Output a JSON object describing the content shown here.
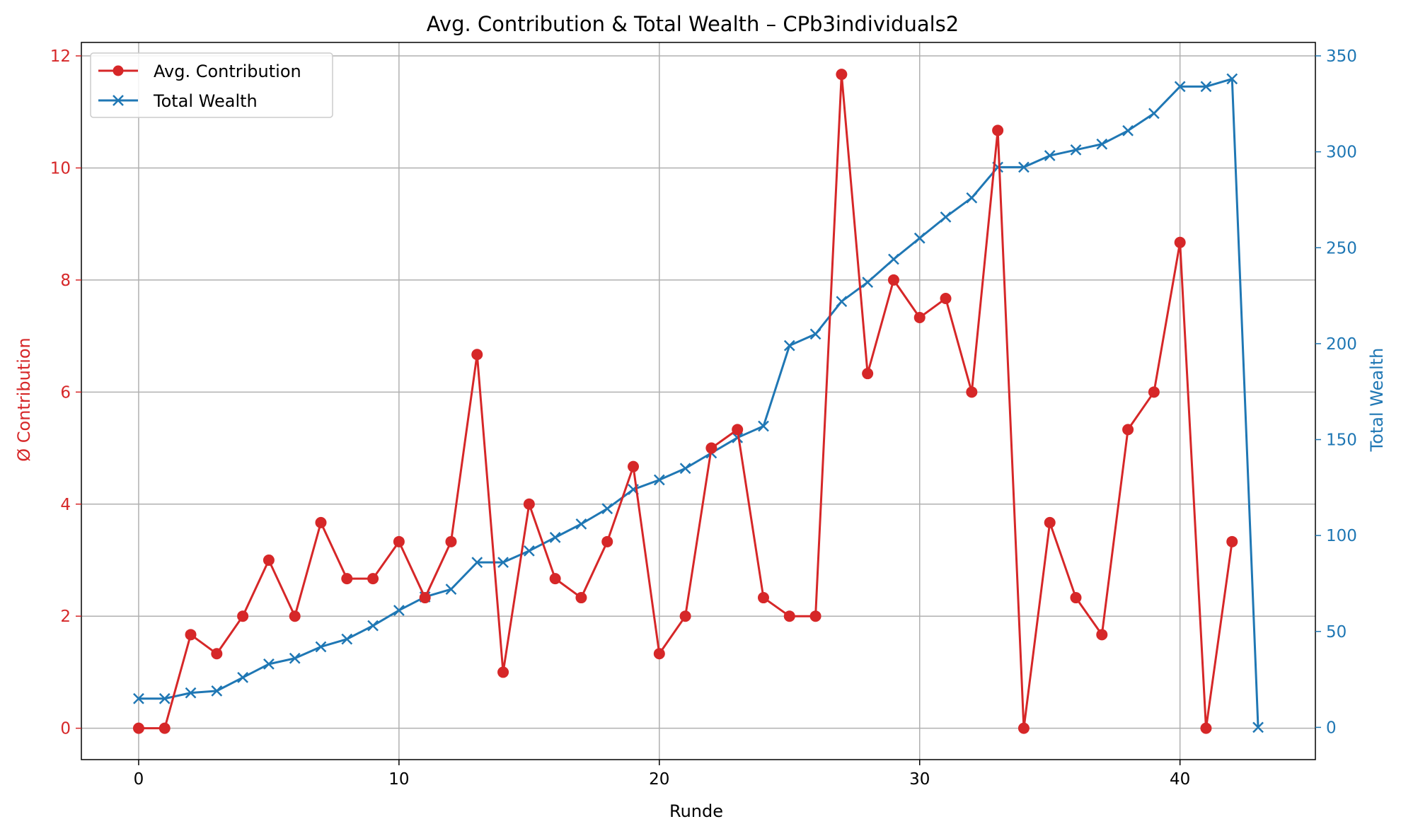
{
  "chart_data": {
    "type": "line",
    "title": "Avg. Contribution & Total Wealth – CPb3individuals2",
    "xlabel": "Runde",
    "ylabel_left": "Ø Contribution",
    "ylabel_right": "Total Wealth",
    "xlim": [
      -2.2,
      45.2
    ],
    "ylim_left": [
      -0.56,
      12.24
    ],
    "ylim_right": [
      -16.8,
      357
    ],
    "x_ticks": [
      0,
      10,
      20,
      30,
      40
    ],
    "y_ticks_left": [
      0,
      2,
      4,
      6,
      8,
      10,
      12
    ],
    "y_ticks_right": [
      0,
      50,
      100,
      150,
      200,
      250,
      300,
      350
    ],
    "grid": true,
    "legend_position": "upper-left",
    "colors": {
      "contribution": "#d62728",
      "wealth": "#1f77b4",
      "grid": "#b0b0b0",
      "text": "#000000"
    },
    "series": [
      {
        "name": "Avg. Contribution",
        "axis": "left",
        "marker": "circle",
        "color": "#d62728",
        "x": [
          0,
          1,
          2,
          3,
          4,
          5,
          6,
          7,
          8,
          9,
          10,
          11,
          12,
          13,
          14,
          15,
          16,
          17,
          18,
          19,
          20,
          21,
          22,
          23,
          24,
          25,
          26,
          27,
          28,
          29,
          30,
          31,
          32,
          33,
          34,
          35,
          36,
          37,
          38,
          39,
          40,
          41,
          42
        ],
        "values": [
          0,
          0,
          1.67,
          1.33,
          2,
          3,
          2,
          3.67,
          2.67,
          2.67,
          3.33,
          2.33,
          3.33,
          6.67,
          1,
          4,
          2.67,
          2.33,
          3.33,
          4.67,
          1.33,
          2,
          5,
          5.33,
          2.33,
          2,
          2,
          11.67,
          6.33,
          8,
          7.33,
          7.67,
          6,
          10.67,
          0,
          3.67,
          2.33,
          1.67,
          5.33,
          6,
          8.67,
          0,
          3.33
        ]
      },
      {
        "name": "Total Wealth",
        "axis": "right",
        "marker": "x",
        "color": "#1f77b4",
        "x": [
          0,
          1,
          2,
          3,
          4,
          5,
          6,
          7,
          8,
          9,
          10,
          11,
          12,
          13,
          14,
          15,
          16,
          17,
          18,
          19,
          20,
          21,
          22,
          23,
          24,
          25,
          26,
          27,
          28,
          29,
          30,
          31,
          32,
          33,
          34,
          35,
          36,
          37,
          38,
          39,
          40,
          41,
          42,
          43
        ],
        "values": [
          15,
          15,
          18,
          19,
          26,
          33,
          36,
          42,
          46,
          53,
          61,
          68,
          72,
          86,
          86,
          92,
          99,
          106,
          114,
          124,
          129,
          135,
          143,
          151,
          157,
          199,
          205,
          222,
          232,
          244,
          255,
          266,
          276,
          292,
          292,
          298,
          301,
          304,
          311,
          320,
          334,
          334,
          338,
          0
        ]
      }
    ]
  }
}
